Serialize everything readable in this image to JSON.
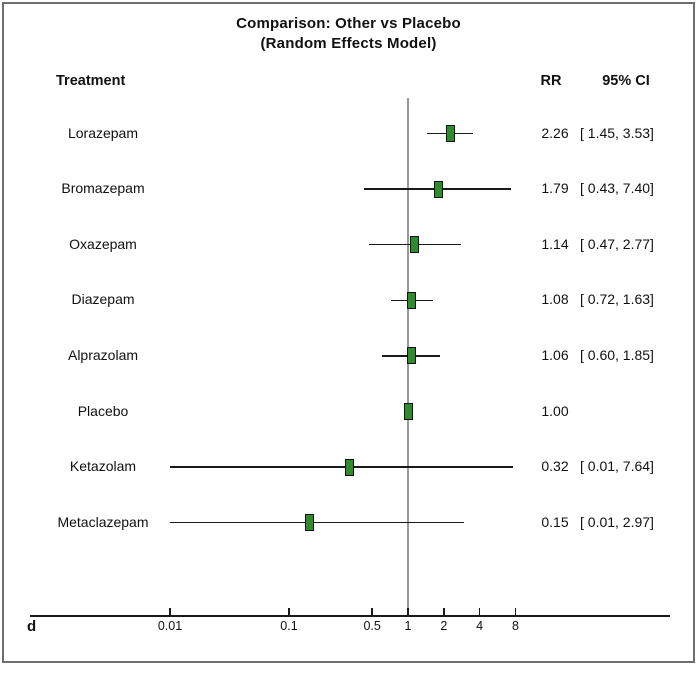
{
  "title": {
    "line1": "Comparison: Other vs Placebo",
    "line2": "(Random Effects Model)"
  },
  "columns": {
    "treatment": "Treatment",
    "rr": "RR",
    "ci": "95% CI"
  },
  "panel_label": "d",
  "colors": {
    "marker_fill": "#2e8b2e",
    "marker_border": "#111111",
    "ci_line": "#1a1a1a",
    "reference_line": "#999999",
    "axis_line": "#1a1a1a",
    "frame_border": "#6e6e6e"
  },
  "chart_data": {
    "type": "scatter",
    "subtype": "forest_plot",
    "title": "Comparison: Other vs Placebo (Random Effects Model)",
    "effect_measure": "RR",
    "x_scale": "log10",
    "reference_value": 1,
    "x_ticks": [
      0.01,
      0.1,
      0.5,
      1,
      2,
      4,
      8
    ],
    "x_tick_labels": [
      "0.01",
      "0.1",
      "0.5",
      "1",
      "2",
      "4",
      "8"
    ],
    "rows": [
      {
        "treatment": "Lorazepam",
        "rr": 2.26,
        "ci_low": 1.45,
        "ci_high": 3.53,
        "rr_label": "2.26",
        "ci_label": "[ 1.45, 3.53]"
      },
      {
        "treatment": "Bromazepam",
        "rr": 1.79,
        "ci_low": 0.43,
        "ci_high": 7.4,
        "rr_label": "1.79",
        "ci_label": "[ 0.43, 7.40]"
      },
      {
        "treatment": "Oxazepam",
        "rr": 1.14,
        "ci_low": 0.47,
        "ci_high": 2.77,
        "rr_label": "1.14",
        "ci_label": "[ 0.47, 2.77]"
      },
      {
        "treatment": "Diazepam",
        "rr": 1.08,
        "ci_low": 0.72,
        "ci_high": 1.63,
        "rr_label": "1.08",
        "ci_label": "[ 0.72, 1.63]"
      },
      {
        "treatment": "Alprazolam",
        "rr": 1.06,
        "ci_low": 0.6,
        "ci_high": 1.85,
        "rr_label": "1.06",
        "ci_label": "[ 0.60, 1.85]"
      },
      {
        "treatment": "Placebo",
        "rr": 1.0,
        "ci_low": null,
        "ci_high": null,
        "rr_label": "1.00",
        "ci_label": ""
      },
      {
        "treatment": "Ketazolam",
        "rr": 0.32,
        "ci_low": 0.01,
        "ci_high": 7.64,
        "rr_label": "0.32",
        "ci_label": "[ 0.01, 7.64]"
      },
      {
        "treatment": "Metaclazepam",
        "rr": 0.15,
        "ci_low": 0.01,
        "ci_high": 2.97,
        "rr_label": "0.15",
        "ci_label": "[ 0.01, 2.97]"
      }
    ]
  }
}
